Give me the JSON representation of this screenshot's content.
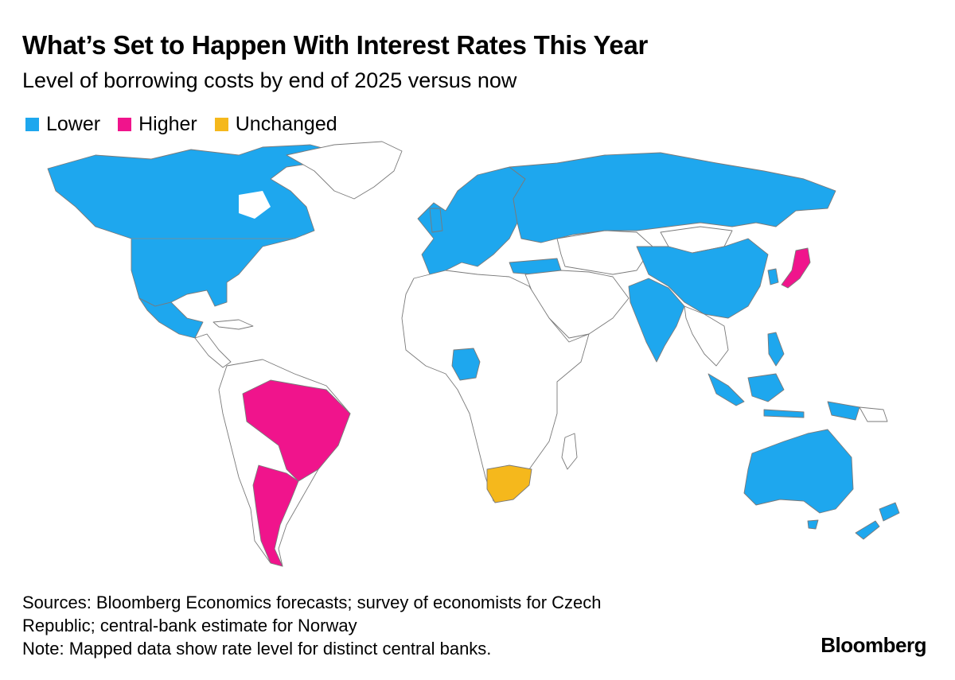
{
  "title": "What’s Set to Happen With Interest Rates This Year",
  "subtitle": "Level of borrowing costs by end of 2025 versus now",
  "legend": [
    {
      "label": "Lower",
      "color": "#1ea7ee"
    },
    {
      "label": "Higher",
      "color": "#f0148c"
    },
    {
      "label": "Unchanged",
      "color": "#f5b81c"
    }
  ],
  "map": {
    "projection": "world",
    "default_fill": "#ffffff",
    "regions": {
      "lower": [
        "North America",
        "Mexico",
        "Europe",
        "Russia",
        "Turkey",
        "China",
        "India",
        "South Korea",
        "Indonesia",
        "Philippines",
        "Australia",
        "New Zealand",
        "Nigeria"
      ],
      "higher": [
        "Brazil",
        "Argentina",
        "Japan"
      ],
      "unchanged": [
        "South Africa"
      ]
    }
  },
  "footer": {
    "sources_line1": "Sources: Bloomberg Economics forecasts; survey of economists for Czech",
    "sources_line2": "Republic; central-bank estimate for Norway",
    "note": "Note: Mapped data show rate level for distinct central banks."
  },
  "brand": "Bloomberg"
}
